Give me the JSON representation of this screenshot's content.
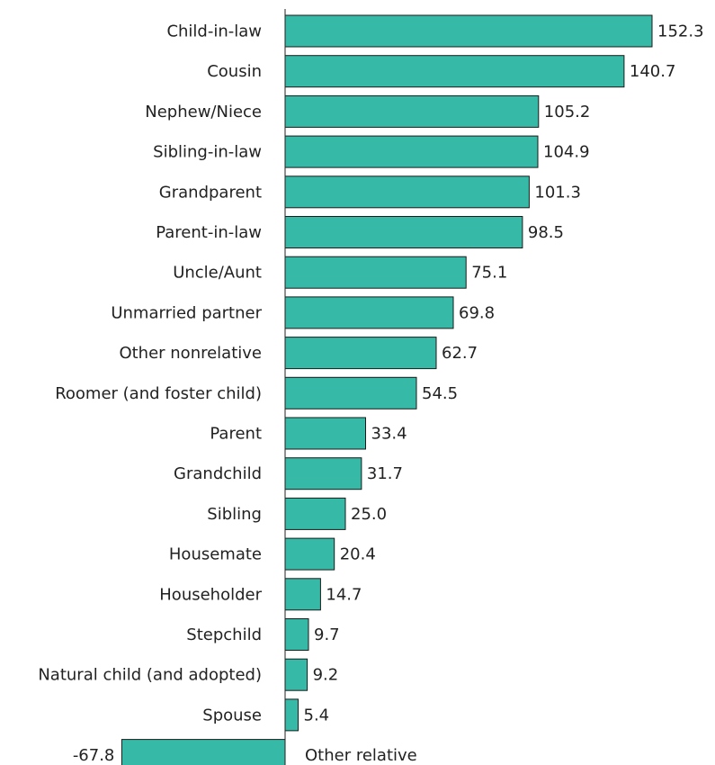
{
  "chart_data": {
    "type": "bar",
    "orientation": "horizontal",
    "categories": [
      "Child-in-law",
      "Cousin",
      "Nephew/Niece",
      "Sibling-in-law",
      "Grandparent",
      "Parent-in-law",
      "Uncle/Aunt",
      "Unmarried partner",
      "Other nonrelative",
      "Roomer (and foster child)",
      "Parent",
      "Grandchild",
      "Sibling",
      "Housemate",
      "Householder",
      "Stepchild",
      "Natural child (and adopted)",
      "Spouse",
      "Other relative"
    ],
    "values": [
      152.3,
      140.7,
      105.2,
      104.9,
      101.3,
      98.5,
      75.1,
      69.8,
      62.7,
      54.5,
      33.4,
      31.7,
      25.0,
      20.4,
      14.7,
      9.7,
      9.2,
      5.4,
      -67.8
    ],
    "value_labels": [
      "152.3",
      "140.7",
      "105.2",
      "104.9",
      "101.3",
      "98.5",
      "75.1",
      "69.8",
      "62.7",
      "54.5",
      "33.4",
      "31.7",
      "25.0",
      "20.4",
      "14.7",
      "9.7",
      "9.2",
      "5.4",
      "-67.8"
    ],
    "bar_color": "#36b9a6",
    "title": "",
    "xlabel": "",
    "ylabel": "",
    "xlim": [
      -67.8,
      152.3
    ],
    "grid": false,
    "legend": "none"
  }
}
